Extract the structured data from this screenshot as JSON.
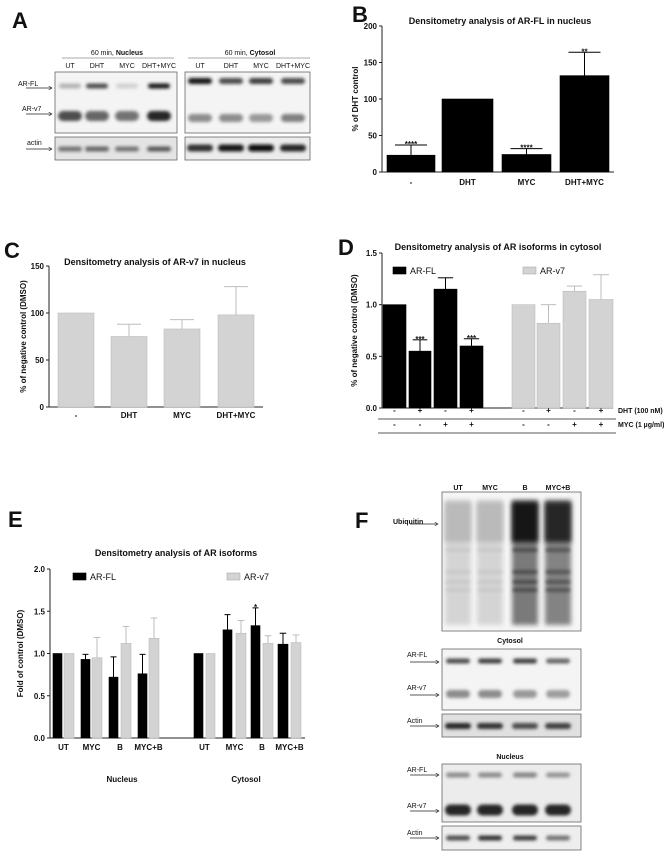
{
  "panel_labels": {
    "a": "A",
    "b": "B",
    "c": "C",
    "d": "D",
    "e": "E",
    "f": "F"
  },
  "panel_a": {
    "nucleus_header_time": "60 min,",
    "nucleus_header_fraction": "Nucleus",
    "cytosol_header_time": "60 min,",
    "cytosol_header_fraction": "Cytosol",
    "lanes": [
      "UT",
      "DHT",
      "MYC",
      "DHT+MYC"
    ],
    "band_labels": [
      "AR-FL",
      "AR-v7",
      "actin"
    ]
  },
  "panel_f": {
    "lanes": [
      "UT",
      "MYC",
      "B",
      "MYC+B"
    ],
    "ubiquitin_label": "Ubiquitin",
    "cytosol_header": "Cytosol",
    "nucleus_header": "Nucleus",
    "band_labels": [
      "AR-FL",
      "AR-v7",
      "Actin"
    ]
  },
  "chart_data": [
    {
      "panel": "B",
      "type": "bar",
      "title": "Densitometry analysis of AR-FL in nucleus",
      "xlabel": "",
      "ylabel": "% of DHT control",
      "ylim": [
        0,
        200
      ],
      "ytick_labels": [
        "0",
        "50",
        "100",
        "150",
        "200"
      ],
      "categories": [
        "-",
        "DHT",
        "MYC",
        "DHT+MYC"
      ],
      "series": [
        {
          "color": "#000000",
          "values": [
            23,
            100,
            24,
            132
          ],
          "error_upper": [
            37,
            null,
            32,
            164
          ],
          "annotations": [
            "****",
            "",
            "****",
            "**"
          ]
        }
      ]
    },
    {
      "panel": "C",
      "type": "bar",
      "title": "Densitometry analysis of AR-v7 in nucleus",
      "xlabel": "",
      "ylabel": "% of negative control (DMSO)",
      "ylim": [
        0,
        150
      ],
      "ytick_labels": [
        "0",
        "50",
        "100",
        "150"
      ],
      "categories": [
        "-",
        "DHT",
        "MYC",
        "DHT+MYC"
      ],
      "series": [
        {
          "color": "#d3d3d3",
          "values": [
            100,
            75,
            83,
            98
          ],
          "error_upper": [
            null,
            88,
            93,
            128
          ],
          "annotations": [
            "",
            "",
            "",
            ""
          ]
        }
      ]
    },
    {
      "panel": "D",
      "type": "bar",
      "title": "Densitometry analysis of AR isoforms in cytosol",
      "xlabel": "",
      "ylabel": "% of negative control (DMSO)",
      "ylim": [
        0,
        1.5
      ],
      "ytick_labels": [
        "0.0",
        "0.5",
        "1.0",
        "1.5"
      ],
      "legend": "top",
      "conditions": [
        {
          "label": "DHT (100 nM)",
          "marks": [
            "-",
            "+",
            "-",
            "+",
            "-",
            "+",
            "-",
            "+"
          ]
        },
        {
          "label": "MYC (1 µg/ml)",
          "marks": [
            "-",
            "-",
            "+",
            "+",
            "-",
            "-",
            "+",
            "+"
          ]
        }
      ],
      "series": [
        {
          "name": "AR-FL",
          "color": "#000000",
          "values": [
            1.0,
            0.55,
            1.15,
            0.6
          ],
          "error_upper": [
            null,
            0.66,
            1.26,
            0.67
          ],
          "annotations": [
            "",
            "***",
            "",
            "***"
          ]
        },
        {
          "name": "AR-v7",
          "color": "#d3d3d3",
          "values": [
            1.0,
            0.82,
            1.13,
            1.05
          ],
          "error_upper": [
            null,
            1.0,
            1.18,
            1.29
          ],
          "annotations": [
            "",
            "",
            "",
            ""
          ]
        }
      ]
    },
    {
      "panel": "E",
      "type": "bar",
      "title": "Densitometry analysis of AR isoforms",
      "xlabel": "",
      "ylabel": "Fold of control (DMSO)",
      "ylim": [
        0,
        2.0
      ],
      "ytick_labels": [
        "0.0",
        "0.5",
        "1.0",
        "1.5",
        "2.0"
      ],
      "legend": "top",
      "groups": [
        "Nucleus",
        "Cytosol"
      ],
      "categories": [
        "UT",
        "MYC",
        "B",
        "MYC+B",
        "UT",
        "MYC",
        "B",
        "MYC+B"
      ],
      "series": [
        {
          "name": "AR-FL",
          "color": "#000000",
          "values": [
            1.0,
            0.93,
            0.72,
            0.76,
            1.0,
            1.28,
            1.33,
            1.11
          ],
          "error_upper": [
            null,
            0.99,
            0.96,
            0.99,
            null,
            1.46,
            1.54,
            1.24
          ],
          "annotations": [
            "",
            "",
            "",
            "",
            "",
            "",
            "*",
            ""
          ]
        },
        {
          "name": "AR-v7",
          "color": "#d3d3d3",
          "values": [
            1.0,
            0.95,
            1.12,
            1.18,
            1.0,
            1.24,
            1.12,
            1.13
          ],
          "error_upper": [
            null,
            1.19,
            1.32,
            1.42,
            null,
            1.39,
            1.21,
            1.22
          ],
          "annotations": [
            "",
            "",
            "",
            "",
            "",
            "",
            "",
            ""
          ]
        }
      ]
    }
  ]
}
